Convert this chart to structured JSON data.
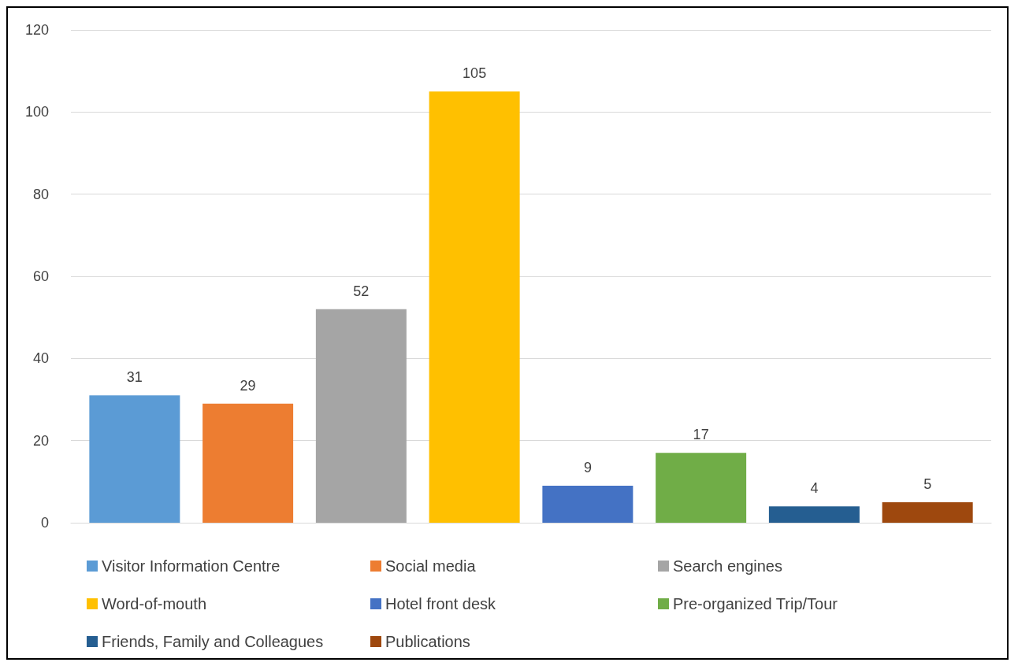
{
  "chart_data": {
    "type": "bar",
    "categories": [
      null
    ],
    "series": [
      {
        "name": "Visitor Information Centre",
        "color": "#5b9bd5",
        "values": [
          31
        ]
      },
      {
        "name": "Social media",
        "color": "#ed7d31",
        "values": [
          29
        ]
      },
      {
        "name": "Search engines",
        "color": "#a5a5a5",
        "values": [
          52
        ]
      },
      {
        "name": "Word-of-mouth",
        "color": "#ffc000",
        "values": [
          105
        ]
      },
      {
        "name": "Hotel front desk",
        "color": "#4472c4",
        "values": [
          9
        ]
      },
      {
        "name": "Pre-organized Trip/Tour",
        "color": "#70ad47",
        "values": [
          17
        ]
      },
      {
        "name": "Friends, Family and Colleagues",
        "color": "#255e91",
        "values": [
          4
        ]
      },
      {
        "name": "Publications",
        "color": "#9e480e",
        "values": [
          5
        ]
      }
    ],
    "ylim": [
      0,
      120
    ],
    "yticks": [
      0,
      20,
      40,
      60,
      80,
      100,
      120
    ],
    "grid": "y",
    "legend": "bottom",
    "data_labels": true
  }
}
